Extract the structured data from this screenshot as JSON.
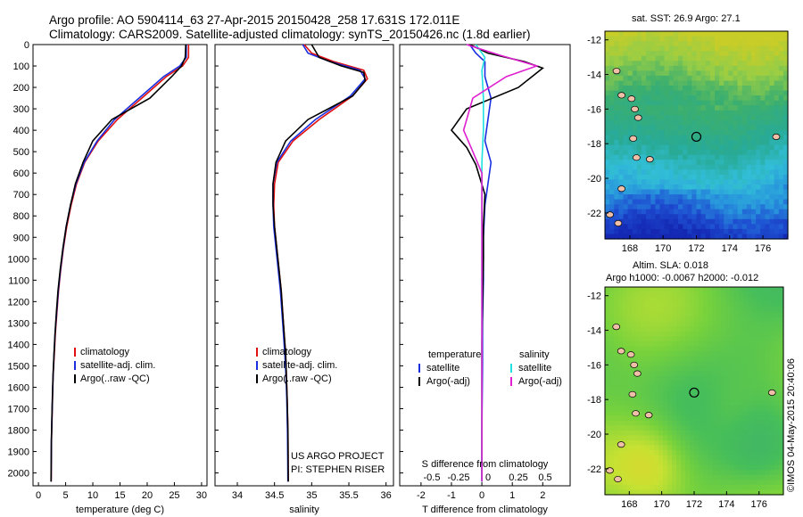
{
  "header": {
    "line1": "Argo profile: AO 5904114_63 27-Apr-2015 20150428_258 17.631S 172.011E",
    "line2": "Climatology: CARS2009. Satellite-adjusted climatology: synTS_20150426.nc (1.8d earlier)"
  },
  "side": {
    "sst_label": "sat. SST: 26.9 Argo: 27.1",
    "sla_label1": "Altim. SLA: 0.018",
    "sla_label2": "Argo h1000: -0.0067 h2000: -0.012",
    "credit": "©IMOS 04-May-2015 20:40:06"
  },
  "colors": {
    "climatology": "#e01010",
    "satellite": "#1a2ee0",
    "argo": "#000000",
    "sal_satellite": "#20e0e0",
    "sal_argo": "#e020d0"
  },
  "chart_data": [
    {
      "type": "line",
      "id": "temperature",
      "xlabel": "temperature (deg C)",
      "ylabel": "",
      "xlim": [
        -1,
        31
      ],
      "ylim": [
        2060,
        0
      ],
      "xticks": [
        0,
        5,
        10,
        15,
        20,
        25,
        30
      ],
      "yticks": [
        0,
        100,
        200,
        300,
        400,
        500,
        600,
        700,
        800,
        900,
        1000,
        1100,
        1200,
        1300,
        1400,
        1500,
        1600,
        1700,
        1800,
        1900,
        2000
      ],
      "legend": [
        "climatology",
        "satellite-adj. clim.",
        "Argo(..raw -QC)"
      ],
      "legend_placement": "lower-center",
      "series": [
        {
          "name": "climatology",
          "x": [
            27.6,
            27.6,
            26.5,
            23.5,
            19,
            14.5,
            11,
            8.5,
            7,
            6,
            5.2,
            4.6,
            4.1,
            3.7,
            3.4,
            3.1,
            2.9,
            2.7,
            2.6,
            2.5,
            2.4,
            2.35
          ],
          "y": [
            0,
            60,
            100,
            150,
            250,
            350,
            450,
            550,
            650,
            750,
            850,
            950,
            1050,
            1150,
            1250,
            1350,
            1450,
            1550,
            1650,
            1750,
            1850,
            2040
          ]
        },
        {
          "name": "satellite-adj. clim.",
          "x": [
            27.2,
            27.2,
            26,
            23,
            18.5,
            14,
            10.8,
            8.4,
            6.9,
            5.9,
            5.1,
            4.55,
            4.05,
            3.65,
            3.35,
            3.05,
            2.85,
            2.7,
            2.58,
            2.48,
            2.38,
            2.33
          ],
          "y": [
            0,
            60,
            100,
            150,
            250,
            350,
            450,
            550,
            650,
            750,
            850,
            950,
            1050,
            1150,
            1250,
            1350,
            1450,
            1550,
            1650,
            1750,
            1850,
            2040
          ]
        },
        {
          "name": "Argo(..raw -QC)",
          "x": [
            27.1,
            27.0,
            26.3,
            24.5,
            20.5,
            13.5,
            10,
            8.2,
            6.8,
            5.9,
            5.1,
            4.5,
            4.0,
            3.6,
            3.3,
            3.05,
            2.85,
            2.68,
            2.56,
            2.46,
            2.38,
            2.32
          ],
          "y": [
            0,
            60,
            100,
            150,
            250,
            350,
            450,
            550,
            650,
            750,
            850,
            950,
            1050,
            1150,
            1250,
            1350,
            1450,
            1550,
            1650,
            1750,
            1850,
            2040
          ]
        }
      ]
    },
    {
      "type": "line",
      "id": "salinity",
      "xlabel": "salinity",
      "xlim": [
        33.7,
        36.1
      ],
      "ylim": [
        2060,
        0
      ],
      "xticks": [
        34,
        34.5,
        35,
        35.5,
        36
      ],
      "legend": [
        "climatology",
        "satellite-adj. clim.",
        "Argo(..raw -QC)"
      ],
      "legend_placement": "lower-center",
      "series": [
        {
          "name": "climatology",
          "x": [
            34.9,
            35.0,
            35.3,
            35.7,
            35.75,
            35.55,
            35.1,
            34.75,
            34.55,
            34.5,
            34.49,
            34.5,
            34.53,
            34.56,
            34.59,
            34.61,
            34.63,
            34.65,
            34.66,
            34.67,
            34.68,
            34.685
          ],
          "y": [
            0,
            40,
            80,
            120,
            160,
            240,
            350,
            450,
            550,
            650,
            750,
            850,
            950,
            1050,
            1150,
            1250,
            1350,
            1450,
            1550,
            1650,
            1800,
            2040
          ]
        },
        {
          "name": "satellite-adj. clim.",
          "x": [
            34.88,
            34.95,
            35.25,
            35.65,
            35.72,
            35.52,
            35.05,
            34.72,
            34.53,
            34.48,
            34.48,
            34.49,
            34.52,
            34.55,
            34.58,
            34.6,
            34.62,
            34.64,
            34.655,
            34.665,
            34.675,
            34.68
          ],
          "y": [
            0,
            40,
            80,
            120,
            160,
            240,
            350,
            450,
            550,
            650,
            750,
            850,
            950,
            1050,
            1150,
            1250,
            1350,
            1450,
            1550,
            1650,
            1800,
            2040
          ]
        },
        {
          "name": "Argo(..raw -QC)",
          "x": [
            35.0,
            35.1,
            35.4,
            35.7,
            35.72,
            35.55,
            34.95,
            34.65,
            34.52,
            34.48,
            34.48,
            34.5,
            34.53,
            34.56,
            34.59,
            34.61,
            34.63,
            34.65,
            34.66,
            34.67,
            34.68,
            34.685
          ],
          "y": [
            0,
            60,
            100,
            130,
            170,
            240,
            350,
            450,
            550,
            650,
            750,
            850,
            950,
            1050,
            1150,
            1250,
            1350,
            1450,
            1550,
            1650,
            1800,
            2040
          ]
        }
      ]
    },
    {
      "type": "line",
      "id": "difference",
      "xlabel": "T difference from climatology",
      "top_label": "S difference from climatology",
      "xlim": [
        -2.7,
        2.9
      ],
      "ylim": [
        2060,
        0
      ],
      "xticks": [
        -2,
        -1,
        0,
        1,
        2
      ],
      "top_ticks_labels": [
        "-0.5",
        "-0.25",
        "0",
        "0.25",
        "0.5"
      ],
      "legend_title_t": "temperature",
      "legend_title_s": "salinity",
      "legend": [
        "satellite",
        "Argo(-adj)",
        "satellite",
        "Argo(-adj)"
      ],
      "series": [
        {
          "name": "satellite",
          "kind": "temperature",
          "x": [
            -0.4,
            -0.2,
            0.1,
            0.1,
            0.3,
            0.2,
            0.1,
            0.3,
            0.2,
            0.1,
            0.05,
            0.05,
            0.02,
            0.02,
            0.0,
            0.0
          ],
          "y": [
            0,
            40,
            80,
            150,
            250,
            350,
            450,
            550,
            650,
            750,
            900,
            1100,
            1300,
            1500,
            1800,
            2040
          ]
        },
        {
          "name": "Argo(-adj)",
          "kind": "temperature",
          "x": [
            -0.4,
            0.2,
            1.4,
            2.0,
            1.2,
            -0.5,
            -1.0,
            -0.5,
            -0.2,
            0.1,
            0.05,
            0.05,
            0.02,
            0.0,
            0.0,
            0.0
          ],
          "y": [
            0,
            40,
            80,
            110,
            200,
            300,
            400,
            480,
            560,
            700,
            850,
            1000,
            1200,
            1400,
            1700,
            2040
          ]
        },
        {
          "name": "satellite",
          "kind": "salinity",
          "x": [
            -0.2,
            0.1,
            0.0,
            0.05,
            0.05,
            0.0,
            0.0,
            0.0,
            0.0,
            0.0,
            0.0
          ],
          "y": [
            0,
            60,
            120,
            250,
            400,
            550,
            700,
            900,
            1200,
            1600,
            2040
          ]
        },
        {
          "name": "Argo(-adj)",
          "kind": "salinity",
          "x": [
            -0.5,
            0.6,
            1.8,
            0.8,
            -0.3,
            -0.6,
            -0.3,
            0.0,
            0.0,
            0.0,
            0.0
          ],
          "y": [
            0,
            50,
            100,
            150,
            250,
            400,
            500,
            600,
            800,
            1200,
            2040
          ]
        }
      ]
    },
    {
      "type": "heatmap",
      "id": "sst_map",
      "title": "sat. SST: 26.9 Argo: 27.1",
      "xlim": [
        166.5,
        177.5
      ],
      "ylim": [
        -23.5,
        -11.5
      ],
      "xticks": [
        168,
        170,
        172,
        174,
        176
      ],
      "yticks": [
        -12,
        -14,
        -16,
        -18,
        -20,
        -22
      ],
      "marker": [
        172,
        -17.6
      ]
    },
    {
      "type": "heatmap",
      "id": "sla_map",
      "title": "Altim. SLA: 0.018",
      "xlim": [
        166.5,
        177.5
      ],
      "ylim": [
        -23.5,
        -11.5
      ],
      "xticks": [
        168,
        170,
        172,
        174,
        176
      ],
      "yticks": [
        -12,
        -14,
        -16,
        -18,
        -20,
        -22
      ],
      "marker": [
        172,
        -17.6
      ]
    }
  ]
}
